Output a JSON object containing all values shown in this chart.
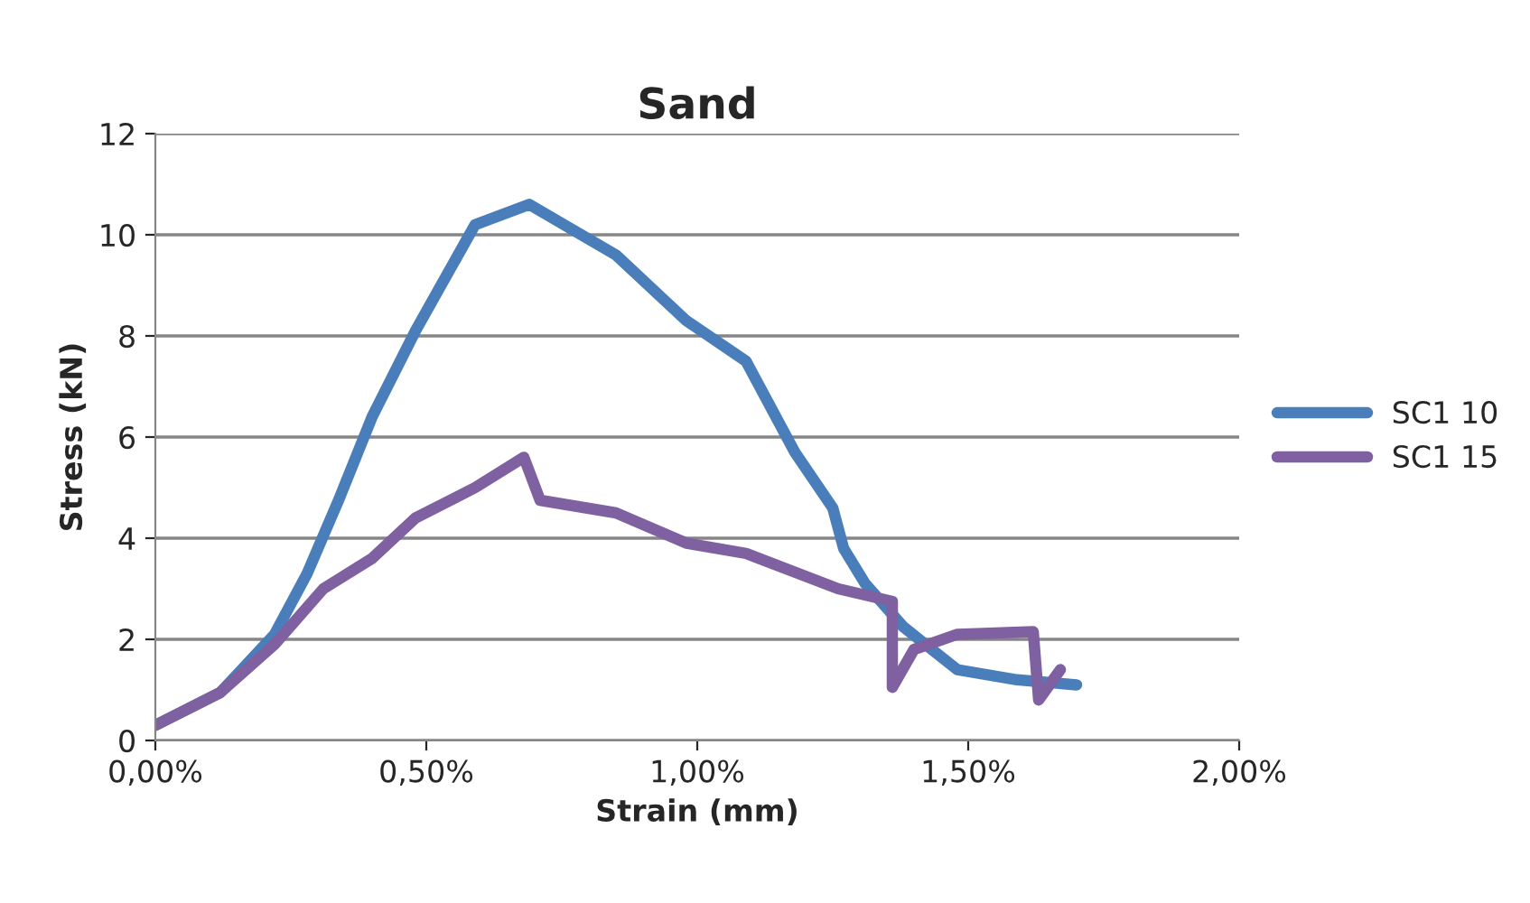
{
  "chart_data": {
    "type": "line",
    "title": "Sand",
    "xlabel": "Strain (mm)",
    "ylabel": "Stress (kN)",
    "series": [
      {
        "name": "SC1 10",
        "color": "#4a7ebb",
        "x": [
          0,
          0.12,
          0.22,
          0.28,
          0.34,
          0.4,
          0.48,
          0.59,
          0.69,
          0.85,
          0.98,
          1.09,
          1.18,
          1.25,
          1.27,
          1.31,
          1.38,
          1.48,
          1.59,
          1.7
        ],
        "values": [
          0.3,
          0.95,
          2.1,
          3.3,
          4.8,
          6.4,
          8.1,
          10.2,
          10.6,
          9.6,
          8.3,
          7.5,
          5.7,
          4.6,
          3.8,
          3.1,
          2.25,
          1.4,
          1.2,
          1.1
        ]
      },
      {
        "name": "SC1 15",
        "color": "#7f60a0",
        "x": [
          0,
          0.12,
          0.22,
          0.31,
          0.4,
          0.48,
          0.59,
          0.68,
          0.71,
          0.85,
          0.98,
          1.09,
          1.26,
          1.36,
          1.36,
          1.4,
          1.48,
          1.62,
          1.63,
          1.67
        ],
        "values": [
          0.3,
          0.95,
          1.9,
          3.0,
          3.6,
          4.4,
          5.0,
          5.6,
          4.75,
          4.5,
          3.9,
          3.7,
          3.0,
          2.75,
          1.05,
          1.8,
          2.1,
          2.15,
          0.8,
          1.4
        ]
      }
    ],
    "xlim": [
      0,
      2
    ],
    "xticks": [
      {
        "value": 0,
        "label": "0,00%"
      },
      {
        "value": 0.5,
        "label": "0,50%"
      },
      {
        "value": 1,
        "label": "1,00%"
      },
      {
        "value": 1.5,
        "label": "1,50%"
      },
      {
        "value": 2,
        "label": "2,00%"
      }
    ],
    "ylim": [
      0,
      12
    ],
    "yticks": [
      0,
      2,
      4,
      6,
      8,
      10,
      12
    ],
    "grid": "y",
    "legend": "right",
    "marker": "none",
    "line_style": "solid"
  }
}
